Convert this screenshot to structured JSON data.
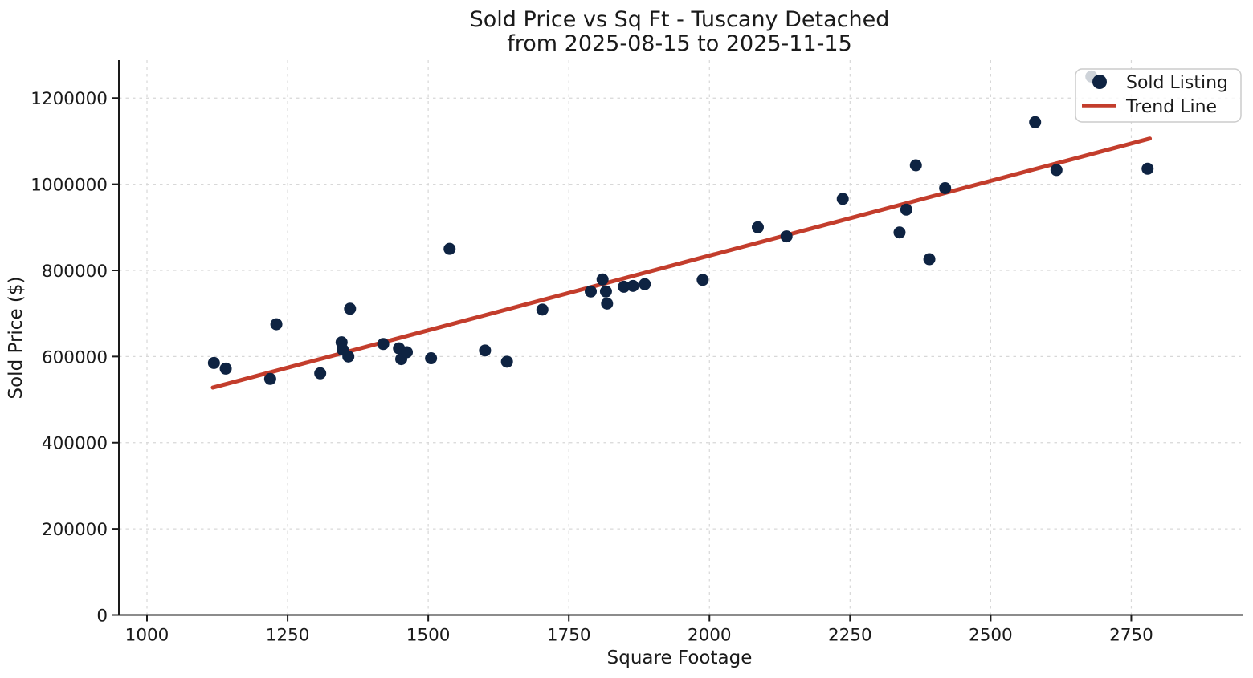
{
  "chart": {
    "title_line1": "Sold Price vs Sq Ft - Tuscany Detached",
    "title_line2": "from 2025-08-15 to 2025-11-15",
    "xlabel": "Square Footage",
    "ylabel": "Sold Price ($)",
    "legend": [
      {
        "label": "Sold Listing",
        "swatch": "scatter-dot-icon"
      },
      {
        "label": "Trend Line",
        "swatch": "line-segment-icon"
      }
    ],
    "colors": {
      "point": "#0e2342",
      "trend_line": "#c33d2c",
      "grid": "#d8d8d8",
      "axis": "#1a1a1a",
      "legend_border": "#cccccc",
      "legend_background": "rgba(255,255,255,0.8)"
    }
  },
  "chart_data": {
    "type": "scatter",
    "title": "Sold Price vs Sq Ft - Tuscany Detached from 2025-08-15 to 2025-11-15",
    "xlabel": "Square Footage",
    "ylabel": "Sold Price ($)",
    "xlim": [
      950,
      2945
    ],
    "ylim": [
      0,
      1288000
    ],
    "xticks": [
      1000,
      1250,
      1500,
      1750,
      2000,
      2250,
      2500,
      2750
    ],
    "yticks": [
      0,
      200000,
      400000,
      600000,
      800000,
      1000000,
      1200000
    ],
    "grid": true,
    "legend_position": "upper right",
    "series": [
      {
        "name": "Sold Listing",
        "type": "scatter",
        "points": [
          [
            1119,
            585000
          ],
          [
            1140,
            572000
          ],
          [
            1219,
            548000
          ],
          [
            1230,
            675000
          ],
          [
            1308,
            561000
          ],
          [
            1346,
            633000
          ],
          [
            1348,
            616000
          ],
          [
            1358,
            600000
          ],
          [
            1361,
            711000
          ],
          [
            1420,
            629000
          ],
          [
            1448,
            619000
          ],
          [
            1452,
            594000
          ],
          [
            1462,
            610000
          ],
          [
            1505,
            596000
          ],
          [
            1538,
            850000
          ],
          [
            1601,
            614000
          ],
          [
            1640,
            588000
          ],
          [
            1703,
            709000
          ],
          [
            1789,
            751000
          ],
          [
            1810,
            779000
          ],
          [
            1816,
            751000
          ],
          [
            1818,
            723000
          ],
          [
            1848,
            762000
          ],
          [
            1864,
            764000
          ],
          [
            1885,
            768000
          ],
          [
            1988,
            778000
          ],
          [
            2086,
            900000
          ],
          [
            2137,
            879000
          ],
          [
            2237,
            966000
          ],
          [
            2338,
            888000
          ],
          [
            2350,
            941000
          ],
          [
            2367,
            1044000
          ],
          [
            2391,
            826000
          ],
          [
            2419,
            991000
          ],
          [
            2579,
            1144000
          ],
          [
            2617,
            1033000
          ],
          [
            2679,
            1250000
          ],
          [
            2779,
            1036000
          ]
        ]
      },
      {
        "name": "Trend Line",
        "type": "line",
        "points": [
          [
            1117,
            528000
          ],
          [
            2783,
            1106000
          ]
        ]
      }
    ]
  }
}
